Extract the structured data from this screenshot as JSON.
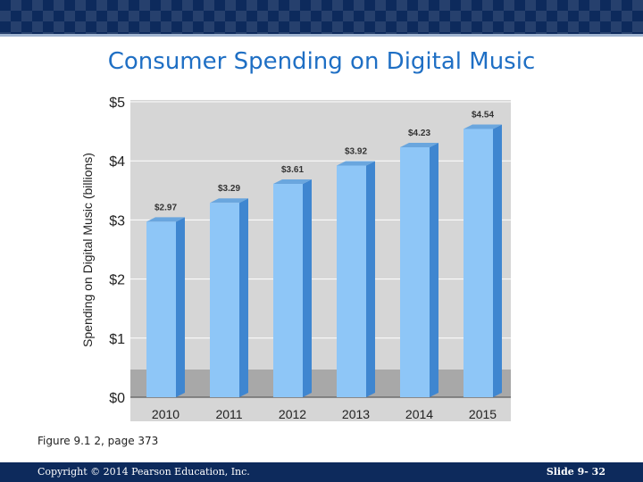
{
  "slide": {
    "title": "Consumer Spending on Digital Music",
    "caption": "Figure 9.1 2, page 373",
    "copyright": "Copyright © 2014 Pearson Education, Inc.",
    "slide_number": "Slide 9- 32"
  },
  "colors": {
    "banner": "#0d2a5c",
    "title": "#1f6fc4",
    "bar_front": "#8ec6f7",
    "bar_top": "#6aa6de",
    "bar_side": "#3f86d0",
    "plot_bg": "#d6d6d6",
    "floor": "#a8a8a8"
  },
  "chart_data": {
    "type": "bar",
    "categories": [
      "2010",
      "2011",
      "2012",
      "2013",
      "2014",
      "2015"
    ],
    "values": [
      2.97,
      3.29,
      3.61,
      3.92,
      4.23,
      4.54
    ],
    "value_labels": [
      "$2.97",
      "$3.29",
      "$3.61",
      "$3.92",
      "$4.23",
      "$4.54"
    ],
    "title": "",
    "xlabel": "",
    "ylabel": "Spending on Digital Music  (billions)",
    "ylim": [
      0,
      5
    ],
    "yticks": [
      0,
      1,
      2,
      3,
      4,
      5
    ],
    "ytick_labels": [
      "$0",
      "$1",
      "$2",
      "$3",
      "$4",
      "$5"
    ],
    "grid": true,
    "legend": "none"
  }
}
